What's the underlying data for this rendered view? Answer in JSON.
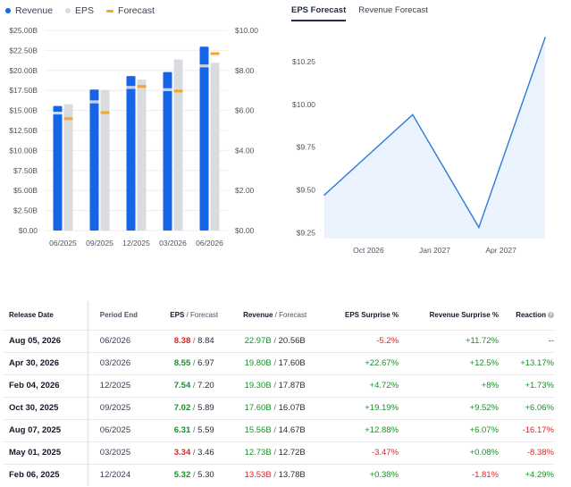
{
  "legend": {
    "revenue": "Revenue",
    "eps": "EPS",
    "forecast": "Forecast",
    "colors": {
      "revenue": "#1565e6",
      "eps": "#d9dbde",
      "forecast": "#f5a623"
    }
  },
  "tabs": {
    "eps_forecast": "EPS Forecast",
    "revenue_forecast": "Revenue Forecast"
  },
  "chart_data": [
    {
      "type": "bar",
      "categories": [
        "06/2025",
        "09/2025",
        "12/2025",
        "03/2026",
        "06/2026"
      ],
      "left_axis": {
        "ticks": [
          "$0.00",
          "$2.50B",
          "$5.00B",
          "$7.50B",
          "$10.00B",
          "$12.50B",
          "$15.00B",
          "$17.50B",
          "$20.00B",
          "$22.50B",
          "$25.00B"
        ],
        "ylim": [
          0,
          25
        ]
      },
      "right_axis": {
        "ticks": [
          "$0.00",
          "$2.00",
          "$4.00",
          "$6.00",
          "$8.00",
          "$10.00"
        ],
        "ylim": [
          0,
          10
        ]
      },
      "series": [
        {
          "name": "Revenue",
          "axis": "left",
          "values": [
            15.56,
            17.6,
            19.3,
            19.8,
            22.97
          ],
          "forecast": [
            14.67,
            16.07,
            17.87,
            17.6,
            20.56
          ]
        },
        {
          "name": "EPS",
          "axis": "right",
          "values": [
            6.31,
            7.02,
            7.54,
            8.55,
            8.38
          ],
          "forecast": [
            5.59,
            5.89,
            7.2,
            6.97,
            8.84
          ]
        }
      ]
    },
    {
      "type": "area",
      "x_ticks": [
        "Oct 2026",
        "Jan 2027",
        "Apr 2027"
      ],
      "y_ticks": [
        "$9.25",
        "$9.50",
        "$9.75",
        "$10.00",
        "$10.25"
      ],
      "ylim": [
        9.22,
        10.37
      ],
      "x": [
        "Aug 2026",
        "Dec 2026",
        "Mar 2027",
        "Jun 2027"
      ],
      "y": [
        9.47,
        9.94,
        9.28,
        10.39
      ]
    }
  ],
  "table": {
    "headers": {
      "release_date": "Release Date",
      "period_end": "Period End",
      "eps": "EPS",
      "forecast": "Forecast",
      "revenue": "Revenue",
      "eps_surprise": "EPS Surprise %",
      "revenue_surprise": "Revenue Surprise %",
      "reaction": "Reaction"
    },
    "rows": [
      {
        "date": "Aug 05, 2026",
        "period": "06/2026",
        "eps": "8.38",
        "eps_color": "red",
        "eps_fc": "8.84",
        "rev": "22.97B",
        "rev_color": "green",
        "rev_fc": "20.56B",
        "eps_surprise": "-5.2%",
        "eps_surprise_color": "red",
        "rev_surprise": "+11.72%",
        "rev_surprise_color": "green",
        "reaction": "--",
        "reaction_color": "muted"
      },
      {
        "date": "Apr 30, 2026",
        "period": "03/2026",
        "eps": "8.55",
        "eps_color": "green",
        "eps_fc": "6.97",
        "rev": "19.80B",
        "rev_color": "green",
        "rev_fc": "17.60B",
        "eps_surprise": "+22.67%",
        "eps_surprise_color": "green",
        "rev_surprise": "+12.5%",
        "rev_surprise_color": "green",
        "reaction": "+13.17%",
        "reaction_color": "green"
      },
      {
        "date": "Feb 04, 2026",
        "period": "12/2025",
        "eps": "7.54",
        "eps_color": "green",
        "eps_fc": "7.20",
        "rev": "19.30B",
        "rev_color": "green",
        "rev_fc": "17.87B",
        "eps_surprise": "+4.72%",
        "eps_surprise_color": "green",
        "rev_surprise": "+8%",
        "rev_surprise_color": "green",
        "reaction": "+1.73%",
        "reaction_color": "green"
      },
      {
        "date": "Oct 30, 2025",
        "period": "09/2025",
        "eps": "7.02",
        "eps_color": "green",
        "eps_fc": "5.89",
        "rev": "17.60B",
        "rev_color": "green",
        "rev_fc": "16.07B",
        "eps_surprise": "+19.19%",
        "eps_surprise_color": "green",
        "rev_surprise": "+9.52%",
        "rev_surprise_color": "green",
        "reaction": "+6.06%",
        "reaction_color": "green"
      },
      {
        "date": "Aug 07, 2025",
        "period": "06/2025",
        "eps": "6.31",
        "eps_color": "green",
        "eps_fc": "5.59",
        "rev": "15.56B",
        "rev_color": "green",
        "rev_fc": "14.67B",
        "eps_surprise": "+12.88%",
        "eps_surprise_color": "green",
        "rev_surprise": "+6.07%",
        "rev_surprise_color": "green",
        "reaction": "-16.17%",
        "reaction_color": "red"
      },
      {
        "date": "May 01, 2025",
        "period": "03/2025",
        "eps": "3.34",
        "eps_color": "red",
        "eps_fc": "3.46",
        "rev": "12.73B",
        "rev_color": "green",
        "rev_fc": "12.72B",
        "eps_surprise": "-3.47%",
        "eps_surprise_color": "red",
        "rev_surprise": "+0.08%",
        "rev_surprise_color": "green",
        "reaction": "-8.38%",
        "reaction_color": "red"
      },
      {
        "date": "Feb 06, 2025",
        "period": "12/2024",
        "eps": "5.32",
        "eps_color": "green",
        "eps_fc": "5.30",
        "rev": "13.53B",
        "rev_color": "red",
        "rev_fc": "13.78B",
        "eps_surprise": "+0.38%",
        "eps_surprise_color": "green",
        "rev_surprise": "-1.81%",
        "rev_surprise_color": "red",
        "reaction": "+4.29%",
        "reaction_color": "green"
      }
    ]
  }
}
